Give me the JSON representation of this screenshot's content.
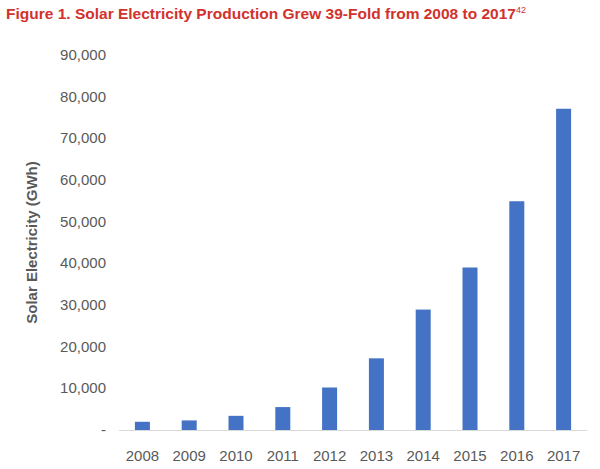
{
  "chart_data": {
    "type": "bar",
    "title": "Figure 1. Solar Electricity Production Grew 39-Fold from 2008 to 2017",
    "title_footnote": "42",
    "y_label": "Solar Electricity (GWh)",
    "categories": [
      "2008",
      "2009",
      "2010",
      "2011",
      "2012",
      "2013",
      "2014",
      "2015",
      "2016",
      "2017"
    ],
    "values": [
      1970,
      2300,
      3400,
      5500,
      10200,
      17200,
      28900,
      39000,
      54900,
      77100
    ],
    "color": "#4472c4",
    "ylim": [
      0,
      90000
    ],
    "yticks": [
      {
        "value": 0,
        "label": "-"
      },
      {
        "value": 10000,
        "label": "10,000"
      },
      {
        "value": 20000,
        "label": "20,000"
      },
      {
        "value": 30000,
        "label": "30,000"
      },
      {
        "value": 40000,
        "label": "40,000"
      },
      {
        "value": 50000,
        "label": "50,000"
      },
      {
        "value": 60000,
        "label": "60,000"
      },
      {
        "value": 70000,
        "label": "70,000"
      },
      {
        "value": 80000,
        "label": "80,000"
      },
      {
        "value": 90000,
        "label": "90,000"
      }
    ],
    "grid": false
  }
}
